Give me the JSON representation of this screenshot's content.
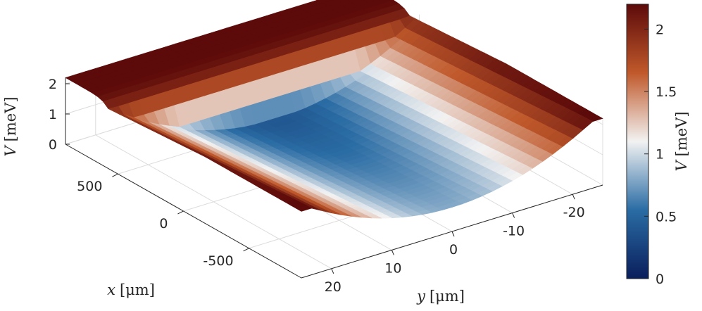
{
  "chart_data": {
    "type": "surface",
    "title": "",
    "xlabel": "x",
    "xlabel_unit": "[μm]",
    "ylabel": "y",
    "ylabel_unit": "[μm]",
    "zlabel": "V",
    "zlabel_unit": "[meV]",
    "x_ticks": [
      {
        "value": 500,
        "label": "500"
      },
      {
        "value": 0,
        "label": "0"
      },
      {
        "value": -500,
        "label": "-500"
      }
    ],
    "y_ticks": [
      {
        "value": 20,
        "label": "20"
      },
      {
        "value": 10,
        "label": "10"
      },
      {
        "value": 0,
        "label": "0"
      },
      {
        "value": -10,
        "label": "-10"
      },
      {
        "value": -20,
        "label": "-20"
      }
    ],
    "z_ticks": [
      {
        "value": 0,
        "label": "0"
      },
      {
        "value": 1,
        "label": "1"
      },
      {
        "value": 2,
        "label": "2"
      }
    ],
    "xlim": [
      -900,
      900
    ],
    "ylim": [
      -25,
      25
    ],
    "zlim": [
      0,
      2.2
    ],
    "grid": true,
    "colormap": {
      "name": "diverging blue-white-red",
      "stops": [
        "#0a1e5c",
        "#2a6ca4",
        "#f2f2f2",
        "#c0592b",
        "#5c0a0a"
      ]
    },
    "colorbar": {
      "label": "V",
      "label_unit": "[meV]",
      "range": [
        0,
        2.2
      ],
      "ticks": [
        {
          "value": 0,
          "label": "0"
        },
        {
          "value": 0.5,
          "label": "0.5"
        },
        {
          "value": 1,
          "label": "1"
        },
        {
          "value": 1.5,
          "label": "1.5"
        },
        {
          "value": 2,
          "label": "2"
        }
      ]
    },
    "surface": {
      "description_function": "V(x,y) ≈ 1.2 + 0.35*(x/900) + 0.0025*y^2 with step to 2.2 for |x| beyond the electrode region"
    }
  }
}
